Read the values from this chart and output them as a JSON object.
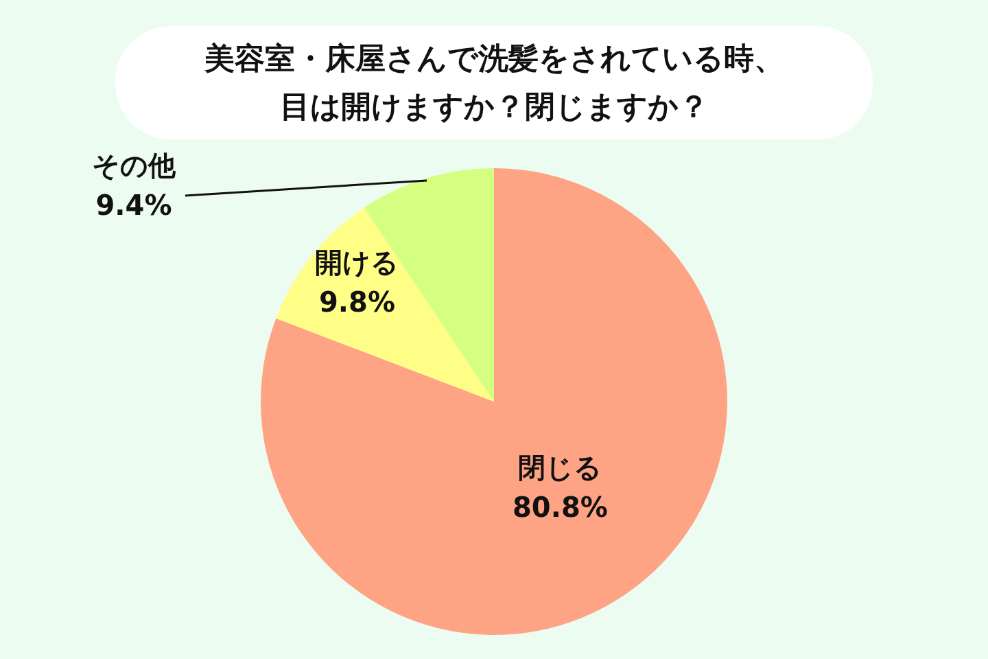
{
  "chart_data": {
    "type": "pie",
    "title": "美容室・床屋さんで洗髪をされている時、目は開けますか？閉じますか？",
    "categories": [
      "閉じる",
      "開ける",
      "その他"
    ],
    "values": [
      80.8,
      9.8,
      9.4
    ],
    "value_labels": [
      "80.8%",
      "9.8%",
      "9.4%"
    ],
    "colors": [
      "#ffa385",
      "#ffff88",
      "#d4ff80"
    ]
  }
}
